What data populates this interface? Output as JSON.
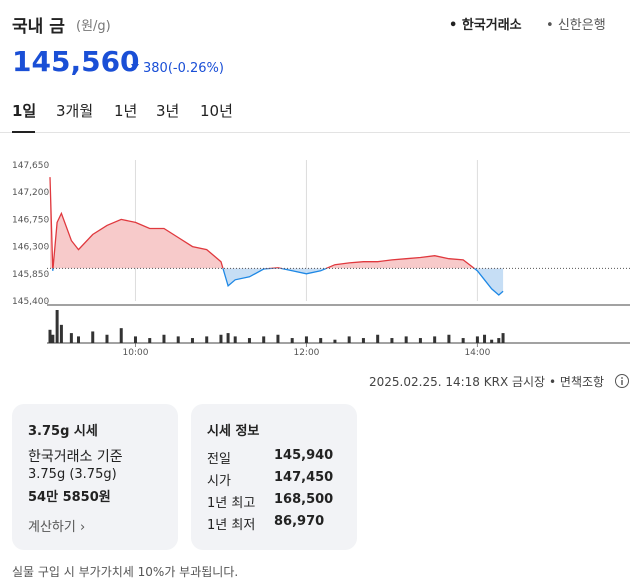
{
  "header": {
    "title": "국내 금",
    "unit": "(원/g)",
    "sources": [
      "한국거래소",
      "신한은행"
    ]
  },
  "price": {
    "value": "145,560",
    "change": "380",
    "change_pct": "(-0.26%)"
  },
  "tabs": [
    "1일",
    "3개월",
    "1년",
    "3년",
    "10년"
  ],
  "chart_data": {
    "type": "line",
    "x": [
      "09:00",
      "09:02",
      "09:05",
      "09:08",
      "09:15",
      "09:20",
      "09:30",
      "09:40",
      "09:50",
      "10:00",
      "10:10",
      "10:20",
      "10:30",
      "10:40",
      "10:50",
      "11:00",
      "11:05",
      "11:10",
      "11:20",
      "11:30",
      "11:40",
      "11:50",
      "12:00",
      "12:10",
      "12:20",
      "12:30",
      "12:40",
      "12:50",
      "13:00",
      "13:10",
      "13:20",
      "13:30",
      "13:40",
      "13:50",
      "14:00",
      "14:05",
      "14:10",
      "14:15",
      "14:18"
    ],
    "values": [
      147450,
      145900,
      146700,
      146850,
      146400,
      146250,
      146500,
      146650,
      146750,
      146700,
      146600,
      146600,
      146450,
      146300,
      146250,
      146050,
      145650,
      145750,
      145800,
      145930,
      145950,
      145900,
      145850,
      145900,
      146000,
      146030,
      146050,
      146050,
      146080,
      146100,
      146120,
      146150,
      146100,
      146080,
      145900,
      145750,
      145600,
      145500,
      145560
    ],
    "volume": [
      40,
      25,
      100,
      55,
      30,
      20,
      35,
      25,
      45,
      20,
      15,
      25,
      20,
      15,
      20,
      25,
      30,
      20,
      15,
      20,
      25,
      15,
      20,
      15,
      10,
      20,
      15,
      25,
      15,
      20,
      15,
      20,
      25,
      15,
      20,
      25,
      10,
      15,
      30
    ],
    "baseline": 145940,
    "xlim": [
      "09:00",
      "15:45"
    ],
    "xticks": [
      "10:00",
      "12:00",
      "14:00"
    ],
    "ylim": [
      145400,
      147650
    ],
    "yticks": [
      {
        "value": 147650,
        "label": "147,650"
      },
      {
        "value": 147200,
        "label": "147,200"
      },
      {
        "value": 146750,
        "label": "146,750"
      },
      {
        "value": 146300,
        "label": "146,300"
      },
      {
        "value": 145850,
        "label": "145,850"
      },
      {
        "value": 145400,
        "label": "145,400"
      }
    ],
    "colors": {
      "up": "#e0393e",
      "up_fill": "#f7caca",
      "down": "#1e88e5",
      "down_fill": "#c6def5"
    }
  },
  "meta": {
    "timestamp": "2025.02.25. 14:18 KRX 금시장",
    "disclaimer": "면책조항"
  },
  "card_price": {
    "title": "3.75g 시세",
    "basis": "한국거래소 기준",
    "weight": "3.75g (3.75g)",
    "amount": "54만 5850원",
    "action": "계산하기"
  },
  "card_info": {
    "title": "시세 정보",
    "rows": [
      [
        "전일",
        "145,940"
      ],
      [
        "시가",
        "147,450"
      ],
      [
        "1년 최고",
        "168,500"
      ],
      [
        "1년 최저",
        "86,970"
      ]
    ]
  },
  "footer": "실물 구입 시 부가가치세 10%가 부과됩니다."
}
